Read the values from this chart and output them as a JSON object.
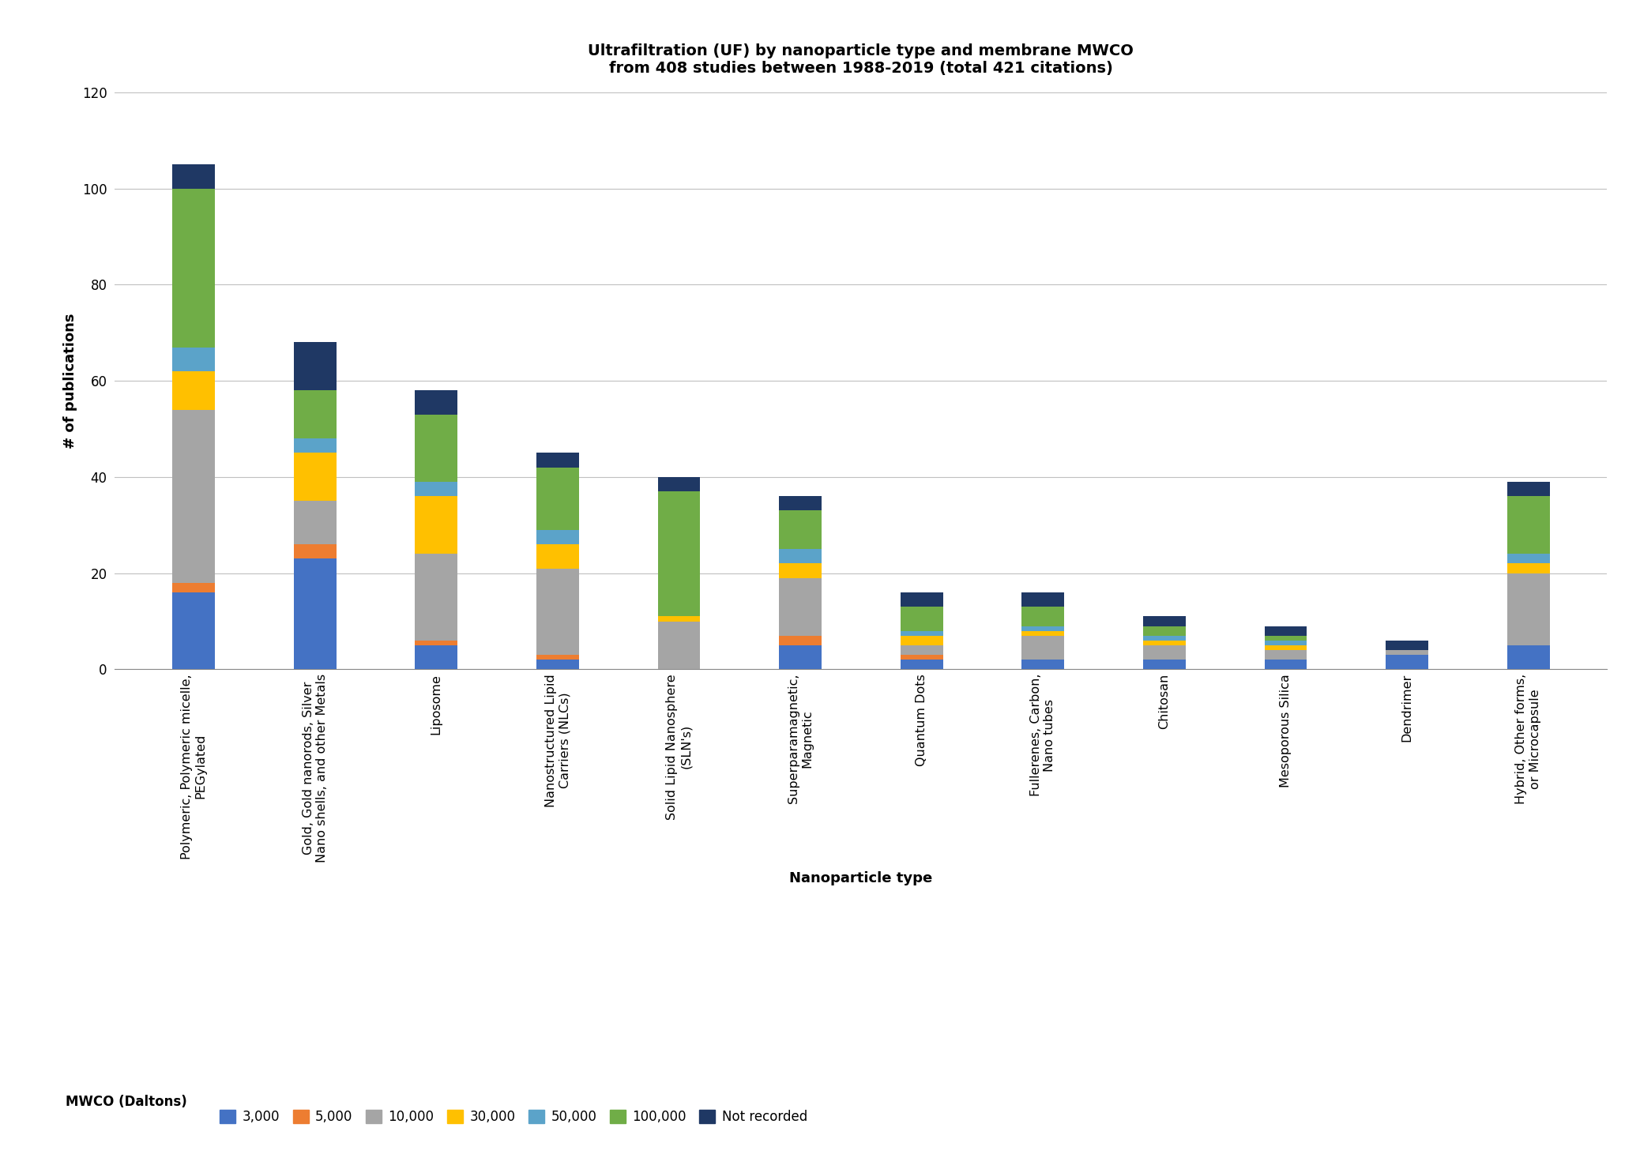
{
  "title": "Ultrafiltration (UF) by nanoparticle type and membrane MWCO\nfrom 408 studies between 1988-2019 (total 421 citations)",
  "xlabel": "Nanoparticle type",
  "ylabel": "# of publications",
  "categories": [
    "Polymeric, Polymeric micelle,\nPEGylated",
    "Gold, Gold nanorods, Silver\nNano shells, and other Metals",
    "Liposome",
    "Nanostructured Lipid\nCarriers (NLCs)",
    "Solid Lipid Nanosphere\n(SLN's)",
    "Superparamagnetic,\nMagnetic",
    "Quantum Dots",
    "Fullerenes, Carbon,\nNano tubes",
    "Chitosan",
    "Mesoporous Silica",
    "Dendrimer",
    "Hybrid, Other forms,\nor Microcapsule"
  ],
  "series": {
    "3,000": [
      16,
      23,
      5,
      2,
      0,
      5,
      2,
      2,
      2,
      2,
      3,
      5
    ],
    "5,000": [
      2,
      3,
      1,
      1,
      0,
      2,
      1,
      0,
      0,
      0,
      0,
      0
    ],
    "10,000": [
      36,
      9,
      18,
      18,
      10,
      12,
      2,
      5,
      3,
      2,
      1,
      15
    ],
    "30,000": [
      8,
      10,
      12,
      5,
      1,
      3,
      2,
      1,
      1,
      1,
      0,
      2
    ],
    "50,000": [
      5,
      3,
      3,
      3,
      0,
      3,
      1,
      1,
      1,
      1,
      0,
      2
    ],
    "100,000": [
      33,
      10,
      14,
      13,
      26,
      8,
      5,
      4,
      2,
      1,
      0,
      12
    ],
    "Not recorded": [
      5,
      10,
      5,
      3,
      3,
      3,
      3,
      3,
      2,
      2,
      2,
      3
    ]
  },
  "colors": {
    "3,000": "#4472C4",
    "5,000": "#ED7D31",
    "10,000": "#A5A5A5",
    "30,000": "#FFC000",
    "50,000": "#5BA3C9",
    "100,000": "#70AD47",
    "Not recorded": "#1F3864"
  },
  "legend_label": "MWCO (Daltons)",
  "ylim": [
    0,
    120
  ],
  "yticks": [
    0,
    20,
    40,
    60,
    80,
    100,
    120
  ],
  "figsize": [
    20.76,
    14.61
  ],
  "dpi": 100
}
